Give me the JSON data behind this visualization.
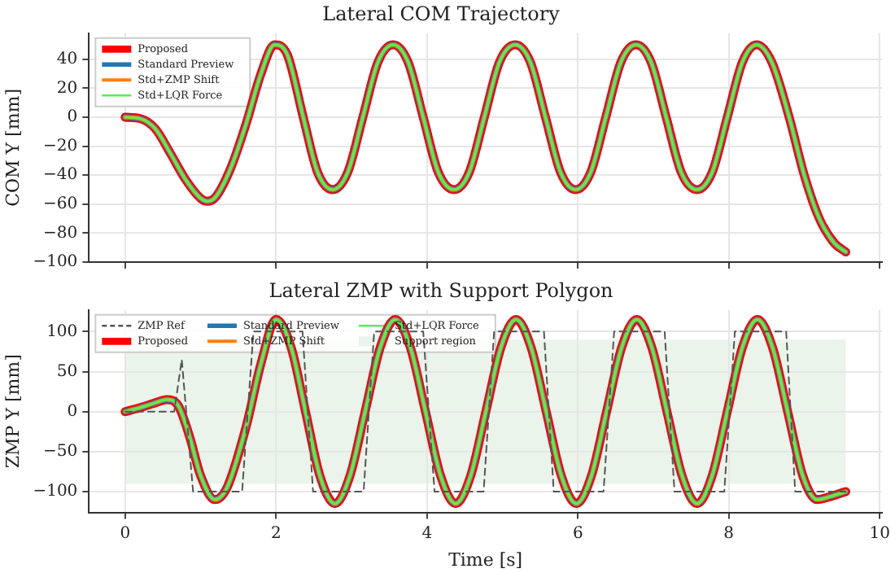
{
  "chart_data": [
    {
      "type": "line",
      "title": "Lateral COM Trajectory",
      "ylabel": "COM Y [mm]",
      "xlim": [
        -0.48,
        10.03
      ],
      "xticks": [
        0,
        2,
        4,
        6,
        8,
        10
      ],
      "ylim": [
        -100,
        58
      ],
      "yticks": [
        -100,
        -80,
        -60,
        -40,
        -20,
        0,
        20,
        40
      ],
      "grid": true,
      "legend": "top left",
      "tick_labels": "y",
      "series": [
        {
          "name": "Proposed",
          "color": "#ff0000",
          "x": [
            0,
            0.2,
            0.4,
            0.6,
            0.8,
            1.0,
            1.09,
            1.2,
            1.4,
            1.6,
            1.8,
            1.98,
            2.15,
            2.36,
            2.55,
            2.75,
            2.95,
            3.15,
            3.35,
            3.55,
            3.75,
            3.95,
            4.15,
            4.36,
            4.56,
            4.76,
            4.96,
            5.17,
            5.37,
            5.57,
            5.77,
            5.97,
            6.17,
            6.37,
            6.57,
            6.77,
            6.97,
            7.17,
            7.37,
            7.58,
            7.78,
            7.98,
            8.18,
            8.37,
            8.57,
            8.8,
            9.0,
            9.2,
            9.4,
            9.55
          ],
          "values": [
            0,
            -1,
            -8,
            -25,
            -43,
            -56,
            -58,
            -55,
            -35,
            -5,
            30,
            50,
            43,
            0,
            -38,
            -50,
            -38,
            0,
            38,
            50,
            38,
            0,
            -38,
            -50,
            -38,
            0,
            38,
            50,
            38,
            0,
            -38,
            -50,
            -38,
            0,
            38,
            50,
            38,
            0,
            -38,
            -50,
            -38,
            0,
            38,
            50,
            38,
            0,
            -40,
            -70,
            -87,
            -93
          ]
        },
        {
          "name": "Standard Preview",
          "color": "#1f77b4",
          "x": [
            0,
            0.2,
            0.4,
            0.6,
            0.8,
            1.0,
            1.09,
            1.2,
            1.4,
            1.6,
            1.8,
            1.98,
            2.15,
            2.36,
            2.55,
            2.75,
            2.95,
            3.15,
            3.35,
            3.55,
            3.75,
            3.95,
            4.15,
            4.36,
            4.56,
            4.76,
            4.96,
            5.17,
            5.37,
            5.57,
            5.77,
            5.97,
            6.17,
            6.37,
            6.57,
            6.77,
            6.97,
            7.17,
            7.37,
            7.58,
            7.78,
            7.98,
            8.18,
            8.37,
            8.57,
            8.8,
            9.0,
            9.2,
            9.4,
            9.55
          ],
          "values": [
            0,
            -1,
            -8,
            -25,
            -43,
            -56,
            -58,
            -55,
            -35,
            -5,
            30,
            50,
            43,
            0,
            -38,
            -50,
            -38,
            0,
            38,
            50,
            38,
            0,
            -38,
            -50,
            -38,
            0,
            38,
            50,
            38,
            0,
            -38,
            -50,
            -38,
            0,
            38,
            50,
            38,
            0,
            -38,
            -50,
            -38,
            0,
            38,
            50,
            38,
            0,
            -40,
            -70,
            -87,
            -93
          ]
        },
        {
          "name": "Std+ZMP Shift",
          "color": "#ff7f0e",
          "x": [
            0,
            0.2,
            0.4,
            0.6,
            0.8,
            1.0,
            1.09,
            1.2,
            1.4,
            1.6,
            1.8,
            1.98,
            2.15,
            2.36,
            2.55,
            2.75,
            2.95,
            3.15,
            3.35,
            3.55,
            3.75,
            3.95,
            4.15,
            4.36,
            4.56,
            4.76,
            4.96,
            5.17,
            5.37,
            5.57,
            5.77,
            5.97,
            6.17,
            6.37,
            6.57,
            6.77,
            6.97,
            7.17,
            7.37,
            7.58,
            7.78,
            7.98,
            8.18,
            8.37,
            8.57,
            8.8,
            9.0,
            9.2,
            9.4,
            9.55
          ],
          "values": [
            0,
            -1,
            -8,
            -25,
            -43,
            -56,
            -58,
            -55,
            -35,
            -5,
            30,
            50,
            43,
            0,
            -38,
            -50,
            -38,
            0,
            38,
            50,
            38,
            0,
            -38,
            -50,
            -38,
            0,
            38,
            50,
            38,
            0,
            -38,
            -50,
            -38,
            0,
            38,
            50,
            38,
            0,
            -38,
            -50,
            -38,
            0,
            38,
            50,
            38,
            0,
            -40,
            -70,
            -87,
            -93
          ]
        },
        {
          "name": "Std+LQR Force",
          "color": "#55ee55",
          "x": [
            0,
            0.2,
            0.4,
            0.6,
            0.8,
            1.0,
            1.09,
            1.2,
            1.4,
            1.6,
            1.8,
            1.98,
            2.15,
            2.36,
            2.55,
            2.75,
            2.95,
            3.15,
            3.35,
            3.55,
            3.75,
            3.95,
            4.15,
            4.36,
            4.56,
            4.76,
            4.96,
            5.17,
            5.37,
            5.57,
            5.77,
            5.97,
            6.17,
            6.37,
            6.57,
            6.77,
            6.97,
            7.17,
            7.37,
            7.58,
            7.78,
            7.98,
            8.18,
            8.37,
            8.57,
            8.8,
            9.0,
            9.2,
            9.4,
            9.55
          ],
          "values": [
            0,
            -1,
            -8,
            -25,
            -43,
            -56,
            -58,
            -55,
            -35,
            -5,
            30,
            50,
            43,
            0,
            -38,
            -50,
            -38,
            0,
            38,
            50,
            38,
            0,
            -38,
            -50,
            -38,
            0,
            38,
            50,
            38,
            0,
            -38,
            -50,
            -38,
            0,
            38,
            50,
            38,
            0,
            -38,
            -50,
            -38,
            0,
            38,
            50,
            38,
            0,
            -40,
            -70,
            -87,
            -93
          ]
        }
      ]
    },
    {
      "type": "line",
      "title": "Lateral ZMP with Support Polygon",
      "xlabel": "Time [s]",
      "ylabel": "ZMP Y [mm]",
      "xlim": [
        -0.48,
        10.03
      ],
      "xticks": [
        0,
        2,
        4,
        6,
        8,
        10
      ],
      "ylim": [
        -126,
        127
      ],
      "yticks": [
        -100,
        -50,
        0,
        50,
        100
      ],
      "grid": true,
      "legend": "top",
      "bands": [
        {
          "axis": "y",
          "from": -90,
          "to": 90,
          "label": "Support region",
          "color": "#eaf4ea"
        }
      ],
      "series": [
        {
          "name": "ZMP Ref",
          "color": "#555555",
          "line_style": "dashed",
          "x": [
            0,
            0.65,
            0.75,
            0.9,
            1.55,
            1.7,
            2.35,
            2.49,
            3.16,
            3.3,
            3.95,
            4.1,
            4.75,
            4.89,
            5.55,
            5.68,
            6.34,
            6.48,
            7.15,
            7.28,
            7.94,
            8.08,
            8.76,
            8.88,
            9.55
          ],
          "values": [
            0,
            0,
            65,
            -100,
            -100,
            100,
            100,
            -100,
            -100,
            100,
            100,
            -100,
            -100,
            100,
            100,
            -100,
            -100,
            100,
            100,
            -100,
            -100,
            100,
            100,
            -100,
            -100
          ]
        },
        {
          "name": "Proposed",
          "color": "#ff0000",
          "x": [
            0,
            0.2,
            0.4,
            0.55,
            0.7,
            0.85,
            1.0,
            1.19,
            1.35,
            1.6,
            1.8,
            2.0,
            2.2,
            2.39,
            2.58,
            2.78,
            2.98,
            3.18,
            3.38,
            3.58,
            3.78,
            3.98,
            4.18,
            4.38,
            4.58,
            4.78,
            4.98,
            5.18,
            5.38,
            5.58,
            5.78,
            5.98,
            6.18,
            6.38,
            6.58,
            6.78,
            6.98,
            7.18,
            7.38,
            7.58,
            7.78,
            7.98,
            8.18,
            8.38,
            8.58,
            8.78,
            8.98,
            9.17,
            9.35,
            9.55
          ],
          "values": [
            0,
            5,
            11,
            15,
            8,
            -30,
            -80,
            -110,
            -95,
            -20,
            60,
            115,
            80,
            0,
            -80,
            -115,
            -80,
            0,
            80,
            115,
            80,
            0,
            -80,
            -115,
            -80,
            0,
            80,
            115,
            80,
            0,
            -80,
            -115,
            -80,
            0,
            80,
            115,
            80,
            0,
            -80,
            -115,
            -80,
            0,
            80,
            115,
            80,
            0,
            -80,
            -110,
            -106,
            -100
          ]
        },
        {
          "name": "Standard Preview",
          "color": "#1f77b4",
          "x": [
            0,
            0.2,
            0.4,
            0.55,
            0.7,
            0.85,
            1.0,
            1.19,
            1.35,
            1.6,
            1.8,
            2.0,
            2.2,
            2.39,
            2.58,
            2.78,
            2.98,
            3.18,
            3.38,
            3.58,
            3.78,
            3.98,
            4.18,
            4.38,
            4.58,
            4.78,
            4.98,
            5.18,
            5.38,
            5.58,
            5.78,
            5.98,
            6.18,
            6.38,
            6.58,
            6.78,
            6.98,
            7.18,
            7.38,
            7.58,
            7.78,
            7.98,
            8.18,
            8.38,
            8.58,
            8.78,
            8.98,
            9.17,
            9.35,
            9.55
          ],
          "values": [
            0,
            5,
            11,
            15,
            8,
            -30,
            -80,
            -110,
            -95,
            -20,
            60,
            115,
            80,
            0,
            -80,
            -115,
            -80,
            0,
            80,
            115,
            80,
            0,
            -80,
            -115,
            -80,
            0,
            80,
            115,
            80,
            0,
            -80,
            -115,
            -80,
            0,
            80,
            115,
            80,
            0,
            -80,
            -115,
            -80,
            0,
            80,
            115,
            80,
            0,
            -80,
            -110,
            -106,
            -100
          ]
        },
        {
          "name": "Std+ZMP Shift",
          "color": "#ff7f0e",
          "x": [
            0,
            0.2,
            0.4,
            0.55,
            0.7,
            0.85,
            1.0,
            1.19,
            1.35,
            1.6,
            1.8,
            2.0,
            2.2,
            2.39,
            2.58,
            2.78,
            2.98,
            3.18,
            3.38,
            3.58,
            3.78,
            3.98,
            4.18,
            4.38,
            4.58,
            4.78,
            4.98,
            5.18,
            5.38,
            5.58,
            5.78,
            5.98,
            6.18,
            6.38,
            6.58,
            6.78,
            6.98,
            7.18,
            7.38,
            7.58,
            7.78,
            7.98,
            8.18,
            8.38,
            8.58,
            8.78,
            8.98,
            9.17,
            9.35,
            9.55
          ],
          "values": [
            0,
            5,
            11,
            15,
            8,
            -30,
            -80,
            -110,
            -95,
            -20,
            60,
            115,
            80,
            0,
            -80,
            -115,
            -80,
            0,
            80,
            115,
            80,
            0,
            -80,
            -115,
            -80,
            0,
            80,
            115,
            80,
            0,
            -80,
            -115,
            -80,
            0,
            80,
            115,
            80,
            0,
            -80,
            -115,
            -80,
            0,
            80,
            115,
            80,
            0,
            -80,
            -110,
            -106,
            -100
          ]
        },
        {
          "name": "Std+LQR Force",
          "color": "#55ee55",
          "x": [
            0,
            0.2,
            0.4,
            0.55,
            0.7,
            0.85,
            1.0,
            1.19,
            1.35,
            1.6,
            1.8,
            2.0,
            2.2,
            2.39,
            2.58,
            2.78,
            2.98,
            3.18,
            3.38,
            3.58,
            3.78,
            3.98,
            4.18,
            4.38,
            4.58,
            4.78,
            4.98,
            5.18,
            5.38,
            5.58,
            5.78,
            5.98,
            6.18,
            6.38,
            6.58,
            6.78,
            6.98,
            7.18,
            7.38,
            7.58,
            7.78,
            7.98,
            8.18,
            8.38,
            8.58,
            8.78,
            8.98,
            9.17,
            9.35,
            9.55
          ],
          "values": [
            0,
            5,
            11,
            15,
            8,
            -30,
            -80,
            -110,
            -95,
            -20,
            60,
            115,
            80,
            0,
            -80,
            -115,
            -80,
            0,
            80,
            115,
            80,
            0,
            -80,
            -115,
            -80,
            0,
            80,
            115,
            80,
            0,
            -80,
            -115,
            -80,
            0,
            80,
            115,
            80,
            0,
            -80,
            -115,
            -80,
            0,
            80,
            115,
            80,
            0,
            -80,
            -110,
            -106,
            -100
          ]
        }
      ]
    }
  ]
}
